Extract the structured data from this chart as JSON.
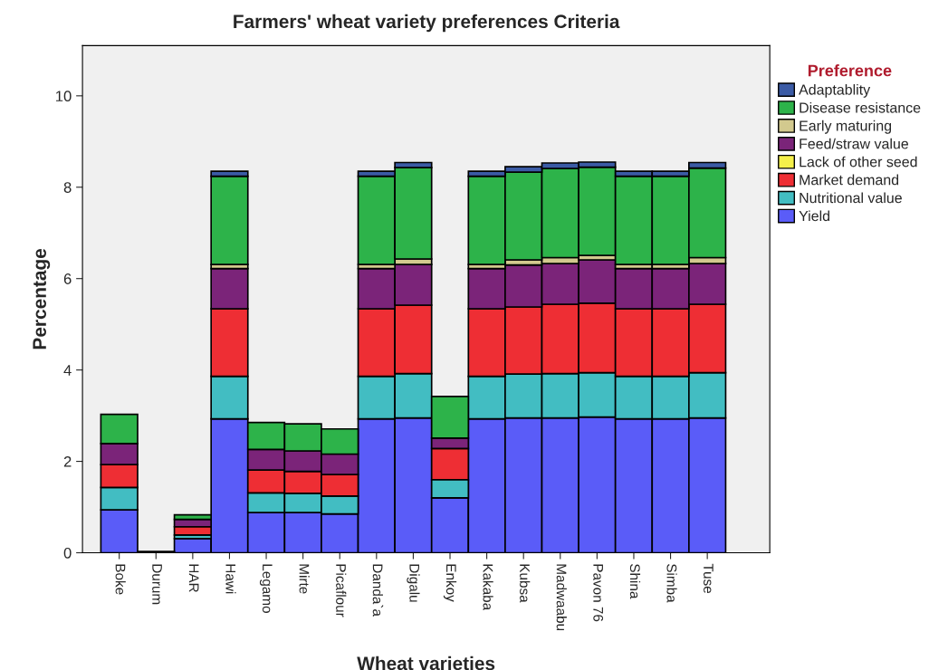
{
  "chart_data": {
    "type": "bar",
    "stacked": true,
    "title": "Farmers' wheat variety preferences Criteria",
    "xlabel": "Wheat varieties",
    "ylabel": "Percentage",
    "legend_title": "Preference",
    "legend": "right",
    "grid": false,
    "categories": [
      "Boke",
      "Durum",
      "HAR",
      "Hawi",
      "Legamo",
      "Mirte",
      "Picaflour",
      "Danda`a",
      "Digalu",
      "Enkoy",
      "Kakaba",
      "Kubsa",
      "Madwaabu",
      "Pavon 76",
      "Shina",
      "Simba",
      "Tuse"
    ],
    "ylim": [
      0,
      11.1
    ],
    "yticks": [
      0,
      2,
      4,
      6,
      8,
      10
    ],
    "series": [
      {
        "name": "Yield",
        "color": "#5a5cf8",
        "values": [
          0.94,
          null,
          0.31,
          2.93,
          0.88,
          0.88,
          0.85,
          2.93,
          2.95,
          1.2,
          2.93,
          2.95,
          2.95,
          2.97,
          2.93,
          2.93,
          2.95
        ]
      },
      {
        "name": "Nutritional value",
        "color": "#42bdc2",
        "values": [
          0.49,
          null,
          0.08,
          0.93,
          0.43,
          0.42,
          0.39,
          0.93,
          0.97,
          0.4,
          0.93,
          0.96,
          0.97,
          0.97,
          0.93,
          0.93,
          0.99
        ]
      },
      {
        "name": "Market demand",
        "color": "#ee2e34",
        "values": [
          0.5,
          null,
          0.18,
          1.48,
          0.5,
          0.48,
          0.47,
          1.48,
          1.5,
          0.68,
          1.48,
          1.47,
          1.52,
          1.52,
          1.48,
          1.48,
          1.5
        ]
      },
      {
        "name": "Lack of other seed",
        "color": "#f5f04a",
        "values": [
          null,
          0.03,
          null,
          null,
          null,
          null,
          null,
          null,
          null,
          null,
          null,
          null,
          null,
          null,
          null,
          null,
          null
        ]
      },
      {
        "name": "Feed/straw value",
        "color": "#7b2479",
        "values": [
          0.46,
          null,
          0.16,
          0.88,
          0.45,
          0.45,
          0.45,
          0.88,
          0.89,
          0.23,
          0.88,
          0.92,
          0.89,
          0.95,
          0.88,
          0.88,
          0.89
        ]
      },
      {
        "name": "Early maturing",
        "color": "#d2c98e",
        "values": [
          null,
          null,
          null,
          0.09,
          null,
          null,
          null,
          0.09,
          0.12,
          null,
          0.09,
          0.11,
          0.13,
          0.1,
          0.09,
          0.09,
          0.13
        ]
      },
      {
        "name": "Disease resistance",
        "color": "#2db34a",
        "values": [
          0.64,
          null,
          0.1,
          1.93,
          0.59,
          0.59,
          0.55,
          1.93,
          2.0,
          0.91,
          1.93,
          1.92,
          1.95,
          1.93,
          1.93,
          1.93,
          1.96
        ]
      },
      {
        "name": "Adaptablity",
        "color": "#3b5ba5",
        "values": [
          null,
          null,
          null,
          0.11,
          null,
          null,
          null,
          0.11,
          0.11,
          null,
          0.11,
          0.12,
          0.12,
          0.11,
          0.11,
          0.11,
          0.12
        ]
      }
    ]
  }
}
